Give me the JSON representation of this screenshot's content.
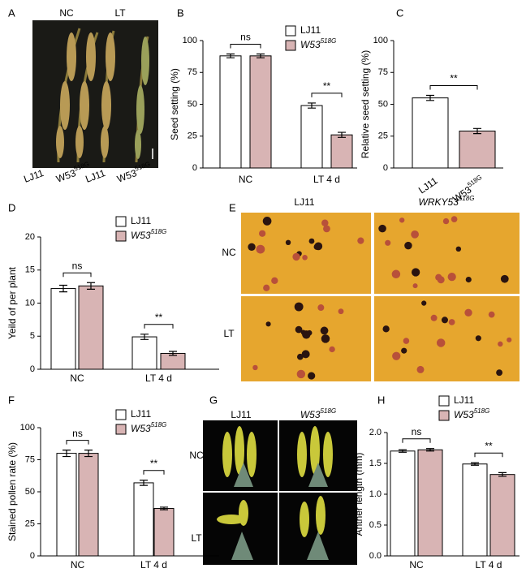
{
  "figure": {
    "panels": [
      "A",
      "B",
      "C",
      "D",
      "E",
      "F",
      "G",
      "H"
    ],
    "a_top": [
      "NC",
      "LT"
    ],
    "a_bottom": [
      "LJ11",
      {
        "text": "W53",
        "sup": "518G"
      },
      "LJ11",
      {
        "text": "W53",
        "sup": "518G"
      }
    ],
    "e_columns": [
      "LJ11",
      {
        "text": "WRKY53",
        "sup": "518G"
      }
    ],
    "e_rows": [
      "NC",
      "LT"
    ],
    "g_columns": [
      "LJ11",
      {
        "text": "W53",
        "sup": "518G"
      }
    ],
    "g_rows": [
      "NC",
      "LT"
    ]
  },
  "chart_data": [
    {
      "type": "bar",
      "y_label": "Seed setting (%)",
      "categories": [
        "NC",
        "LT 4 d"
      ],
      "series": [
        {
          "name": "LJ11",
          "color": "#ffffff",
          "values": [
            88,
            49
          ],
          "errors": [
            1.5,
            2
          ]
        },
        {
          "name": {
            "text": "W53",
            "sup": "518G"
          },
          "color": "#d8b4b4",
          "values": [
            88,
            26
          ],
          "errors": [
            1.5,
            2
          ]
        }
      ],
      "annotations": [
        "ns",
        "**"
      ],
      "ylim": [
        0,
        100
      ],
      "yticks": [
        0,
        25,
        50,
        75,
        100
      ]
    },
    {
      "type": "bar",
      "y_label": "Relative seed setting (%)",
      "categories": [
        "LJ11",
        {
          "text": "W53",
          "sup": "518G"
        }
      ],
      "values": [
        55,
        29
      ],
      "errors": [
        2,
        2
      ],
      "colors": [
        "#ffffff",
        "#d8b4b4"
      ],
      "annotations": [
        "**"
      ],
      "ylim": [
        0,
        100
      ],
      "yticks": [
        0,
        25,
        50,
        75,
        100
      ]
    },
    {
      "type": "bar",
      "y_label": "Yeild of per plant",
      "categories": [
        "NC",
        "LT 4 d"
      ],
      "series": [
        {
          "name": "LJ11",
          "color": "#ffffff",
          "values": [
            12.2,
            4.9
          ],
          "errors": [
            0.5,
            0.4
          ]
        },
        {
          "name": {
            "text": "W53",
            "sup": "518G"
          },
          "color": "#d8b4b4",
          "values": [
            12.6,
            2.4
          ],
          "errors": [
            0.5,
            0.3
          ]
        }
      ],
      "annotations": [
        "ns",
        "**"
      ],
      "ylim": [
        0,
        20
      ],
      "yticks": [
        0,
        5,
        10,
        15,
        20
      ]
    },
    {
      "type": "bar",
      "y_label": "Stained pollen rate (%)",
      "categories": [
        "NC",
        "LT 4 d"
      ],
      "series": [
        {
          "name": "LJ11",
          "color": "#ffffff",
          "values": [
            80,
            57
          ],
          "errors": [
            2.5,
            2
          ]
        },
        {
          "name": {
            "text": "W53",
            "sup": "518G"
          },
          "color": "#d8b4b4",
          "values": [
            80,
            37
          ],
          "errors": [
            2.5,
            1
          ]
        }
      ],
      "annotations": [
        "ns",
        "**"
      ],
      "ylim": [
        0,
        100
      ],
      "yticks": [
        0,
        25,
        50,
        75,
        100
      ]
    },
    {
      "type": "bar",
      "y_label": "Anther length (mm)",
      "categories": [
        "NC",
        "LT 4 d"
      ],
      "series": [
        {
          "name": "LJ11",
          "color": "#ffffff",
          "values": [
            1.7,
            1.49
          ],
          "errors": [
            0.02,
            0.02
          ]
        },
        {
          "name": {
            "text": "W53",
            "sup": "518G"
          },
          "color": "#d8b4b4",
          "values": [
            1.72,
            1.32
          ],
          "errors": [
            0.02,
            0.03
          ]
        }
      ],
      "annotations": [
        "ns",
        "**"
      ],
      "ylim": [
        0,
        2
      ],
      "yticks": [
        {
          "value": 0,
          "label": "0.0"
        },
        0.5,
        {
          "value": 1,
          "label": "1.0"
        },
        1.5,
        {
          "value": 2,
          "label": "2.0"
        }
      ]
    }
  ]
}
